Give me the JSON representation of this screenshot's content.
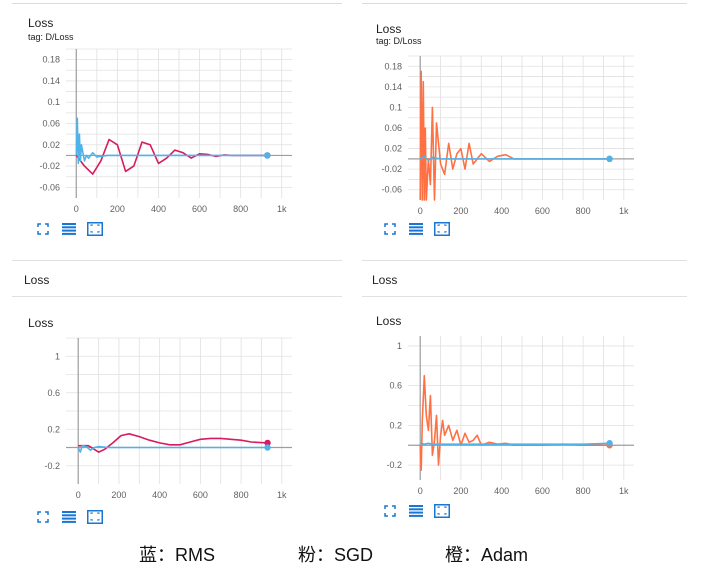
{
  "colors": {
    "rms": "#4fb3ea",
    "sgd": "#d81b60",
    "adam": "#ff7043",
    "grid": "#e0e0e0",
    "axis": "#9e9e9e",
    "icon": "#1976d2"
  },
  "panels": [
    {
      "id": "p1",
      "header": "Loss",
      "tag": "tag: D/Loss",
      "section": ""
    },
    {
      "id": "p2",
      "header": "Loss",
      "tag": "tag: D/Loss",
      "section": ""
    },
    {
      "id": "p3",
      "header": "Loss",
      "tag": "",
      "section": "Loss"
    },
    {
      "id": "p4",
      "header": "Loss",
      "tag": "",
      "section": "Loss"
    }
  ],
  "toolbar_icons": [
    "fullscreen-icon",
    "data-table-icon",
    "fit-domain-icon"
  ],
  "legend": {
    "rms": "蓝：RMS",
    "sgd": "粉：SGD",
    "adam": "橙：Adam"
  },
  "chart_data": [
    {
      "type": "line",
      "title": "Loss",
      "xlim": [
        -50,
        1050
      ],
      "ylim": [
        -0.08,
        0.2
      ],
      "xticks": [
        0,
        200,
        400,
        600,
        800,
        1000
      ],
      "xtick_labels": [
        "0",
        "200",
        "400",
        "600",
        "800",
        "1k"
      ],
      "yticks": [
        0.18,
        0.14,
        0.1,
        0.06,
        0.02,
        -0.02,
        -0.06
      ],
      "ytick_labels": [
        "0.18",
        "0.14",
        "0.1",
        "0.06",
        "0.02",
        "-0.02",
        "-0.06"
      ],
      "series": [
        {
          "color": "#d81b60",
          "x": [
            0,
            40,
            80,
            120,
            160,
            200,
            240,
            280,
            320,
            360,
            400,
            440,
            480,
            520,
            560,
            600,
            640,
            680,
            720,
            760,
            800,
            850,
            930
          ],
          "y": [
            0,
            -0.02,
            -0.035,
            -0.01,
            0.03,
            0.02,
            -0.03,
            -0.02,
            0.025,
            0.02,
            -0.015,
            -0.005,
            0.01,
            0.005,
            -0.005,
            0.003,
            0.002,
            -0.002,
            0.001,
            0.0,
            0.0,
            0.0,
            0.0
          ]
        },
        {
          "color": "#4fb3ea",
          "x": [
            0,
            5,
            10,
            15,
            20,
            25,
            30,
            40,
            50,
            60,
            80,
            100,
            150,
            200,
            300,
            400,
            500,
            600,
            700,
            800,
            930
          ],
          "y": [
            0.0,
            0.07,
            -0.015,
            0.04,
            -0.01,
            0.02,
            0.01,
            -0.01,
            0.0,
            -0.005,
            0.005,
            -0.003,
            0.0,
            0.0,
            0.0,
            0.0,
            0.0,
            0.0,
            0.0,
            0.0,
            0.0
          ]
        }
      ]
    },
    {
      "type": "line",
      "title": "Loss",
      "xlim": [
        -60,
        1050
      ],
      "ylim": [
        -0.08,
        0.2
      ],
      "xticks": [
        0,
        200,
        400,
        600,
        800,
        1000
      ],
      "xtick_labels": [
        "0",
        "200",
        "400",
        "600",
        "800",
        "1k"
      ],
      "yticks": [
        0.18,
        0.14,
        0.1,
        0.06,
        0.02,
        -0.02,
        -0.06
      ],
      "ytick_labels": [
        "0.18",
        "0.14",
        "0.1",
        "0.06",
        "0.02",
        "-0.02",
        "-0.06"
      ],
      "series": [
        {
          "color": "#ff7043",
          "x": [
            0,
            5,
            10,
            15,
            20,
            25,
            30,
            40,
            50,
            60,
            70,
            80,
            100,
            120,
            140,
            160,
            180,
            200,
            220,
            240,
            260,
            280,
            300,
            340,
            380,
            420,
            460,
            500,
            600,
            700,
            800,
            930
          ],
          "y": [
            -0.08,
            0.17,
            -0.08,
            0.15,
            -0.08,
            0.06,
            -0.08,
            0.0,
            -0.05,
            0.1,
            -0.08,
            0.07,
            -0.01,
            -0.03,
            0.03,
            -0.02,
            0.01,
            0.02,
            -0.02,
            0.03,
            -0.01,
            0.0,
            0.01,
            -0.005,
            0.005,
            0.008,
            0.0,
            0.0,
            0.0,
            0.0,
            0.0,
            0.0
          ]
        },
        {
          "color": "#4fb3ea",
          "x": [
            0,
            20,
            40,
            60,
            80,
            100,
            140,
            200,
            300,
            400,
            500,
            600,
            700,
            800,
            930
          ],
          "y": [
            0.0,
            0.005,
            -0.003,
            0.003,
            0.001,
            0.0,
            0.0,
            0.0,
            0.0,
            0.0,
            0.0,
            0.0,
            0.0,
            0.0,
            0.0
          ]
        }
      ]
    },
    {
      "type": "line",
      "title": "Loss",
      "xlim": [
        -60,
        1050
      ],
      "ylim": [
        -0.4,
        1.2
      ],
      "xticks": [
        0,
        200,
        400,
        600,
        800,
        1000
      ],
      "xtick_labels": [
        "0",
        "200",
        "400",
        "600",
        "800",
        "1k"
      ],
      "yticks": [
        1,
        0.6,
        0.2,
        -0.2
      ],
      "ytick_labels": [
        "1",
        "0.6",
        "0.2",
        "-0.2"
      ],
      "series": [
        {
          "color": "#d81b60",
          "x": [
            0,
            50,
            100,
            130,
            170,
            210,
            250,
            300,
            350,
            400,
            450,
            500,
            550,
            600,
            650,
            700,
            750,
            800,
            850,
            930
          ],
          "y": [
            0.02,
            0.02,
            -0.05,
            -0.02,
            0.05,
            0.13,
            0.15,
            0.12,
            0.08,
            0.05,
            0.03,
            0.03,
            0.06,
            0.09,
            0.1,
            0.1,
            0.09,
            0.08,
            0.06,
            0.05
          ]
        },
        {
          "color": "#4fb3ea",
          "x": [
            0,
            10,
            20,
            40,
            60,
            80,
            100,
            150,
            200,
            300,
            400,
            500,
            600,
            700,
            800,
            930
          ],
          "y": [
            0.0,
            -0.05,
            0.02,
            0.01,
            -0.03,
            0.0,
            0.01,
            0.0,
            0.0,
            0.0,
            0.0,
            0.0,
            0.0,
            0.0,
            0.0,
            0.0
          ]
        }
      ]
    },
    {
      "type": "line",
      "title": "Loss",
      "xlim": [
        -60,
        1050
      ],
      "ylim": [
        -0.35,
        1.1
      ],
      "xticks": [
        0,
        200,
        400,
        600,
        800,
        1000
      ],
      "xtick_labels": [
        "0",
        "200",
        "400",
        "600",
        "800",
        "1k"
      ],
      "yticks": [
        1,
        0.6,
        0.2,
        -0.2
      ],
      "ytick_labels": [
        "1",
        "0.6",
        "0.2",
        "-0.2"
      ],
      "series": [
        {
          "color": "#ff7043",
          "x": [
            0,
            5,
            10,
            20,
            30,
            40,
            50,
            60,
            70,
            80,
            90,
            100,
            110,
            120,
            140,
            160,
            180,
            200,
            220,
            240,
            260,
            280,
            300,
            340,
            380,
            420,
            460,
            500,
            600,
            700,
            800,
            930
          ],
          "y": [
            0.0,
            -0.25,
            0.25,
            0.7,
            0.3,
            0.15,
            0.5,
            -0.1,
            0.05,
            0.3,
            -0.2,
            0.1,
            0.25,
            0.1,
            0.2,
            0.05,
            0.15,
            0.0,
            0.12,
            0.03,
            0.05,
            0.1,
            0.0,
            0.03,
            0.01,
            0.02,
            0.0,
            0.0,
            0.0,
            0.01,
            0.0,
            0.0
          ]
        },
        {
          "color": "#4fb3ea",
          "x": [
            0,
            20,
            40,
            60,
            80,
            100,
            140,
            200,
            300,
            400,
            500,
            600,
            700,
            800,
            930
          ],
          "y": [
            0.02,
            0.01,
            0.02,
            0.01,
            0.01,
            0.01,
            0.01,
            0.01,
            0.01,
            0.01,
            0.01,
            0.01,
            0.01,
            0.01,
            0.02
          ]
        }
      ]
    }
  ]
}
